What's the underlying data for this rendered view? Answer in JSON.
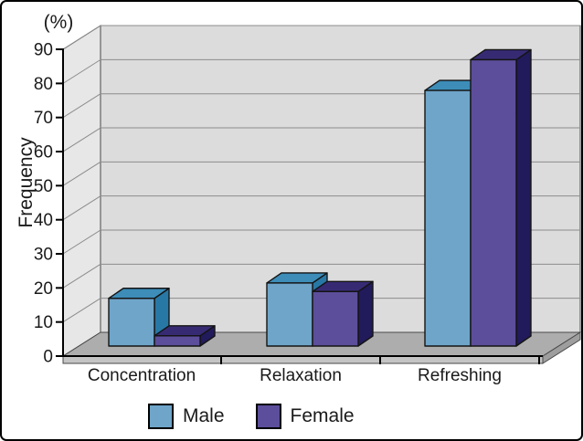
{
  "chart_data": {
    "type": "bar",
    "projection": "3d",
    "title": "",
    "unit_label": "(%)",
    "ylabel": "Frequency",
    "xlabel": "",
    "ylim": [
      0,
      90
    ],
    "ytick_step": 10,
    "grid": true,
    "legend_position": "bottom",
    "categories": [
      "Concentration",
      "Relaxation",
      "Refreshing"
    ],
    "series": [
      {
        "name": "Male",
        "values": [
          14,
          18.5,
          75
        ],
        "front_color": "#6fa5c9",
        "top_color": "#3d8db8",
        "side_color": "#2878a6"
      },
      {
        "name": "Female",
        "values": [
          3,
          16,
          84
        ],
        "front_color": "#5c4e9a",
        "top_color": "#362b73",
        "side_color": "#211a5b"
      }
    ],
    "colors": {
      "background": "#ffffff",
      "frame_border": "#000000",
      "back_wall": "#dcdcdc",
      "side_wall": "#e7e7e7",
      "floor": "#adadad",
      "floor_front": "#c4c4c4",
      "floor_side": "#9e9e9e",
      "gridline": "#8c8c8c",
      "outline": "#4a4a4a",
      "axis": "#000000",
      "text": "#1a1a1a"
    }
  }
}
